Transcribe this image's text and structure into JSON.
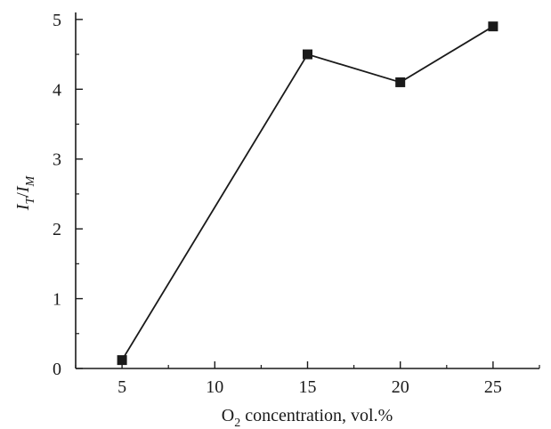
{
  "chart_data": {
    "type": "line",
    "title": "",
    "xlabel": {
      "main": "O",
      "sub": "2",
      "rest": " concentration, vol.%"
    },
    "ylabel": {
      "i1": "I",
      "s1": "T",
      "slash": "/",
      "i2": "I",
      "s2": "M"
    },
    "x": [
      5,
      15,
      20,
      25
    ],
    "series": [
      {
        "values": [
          0.12,
          4.5,
          4.1,
          4.9
        ]
      }
    ],
    "xlim": [
      2.5,
      27.5
    ],
    "ylim": [
      0,
      5.1
    ],
    "xticks": [
      5,
      10,
      15,
      20,
      25
    ],
    "yticks": [
      0,
      1,
      2,
      3,
      4,
      5
    ],
    "grid": false,
    "legend": "none",
    "marker": "square",
    "color": "#1a1a1a"
  }
}
